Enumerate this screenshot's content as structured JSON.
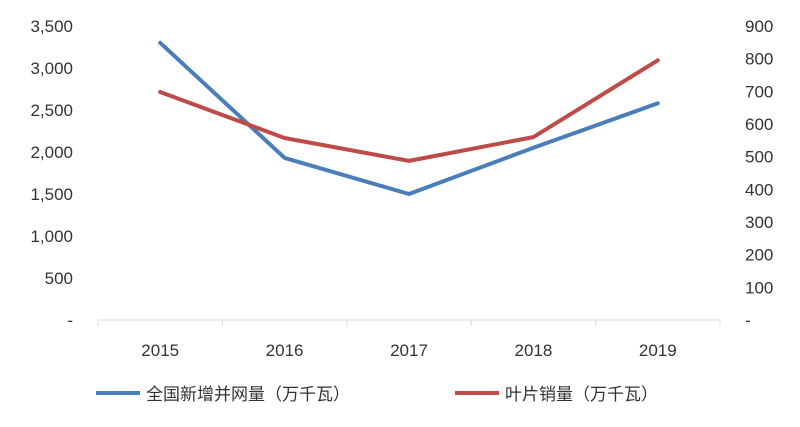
{
  "chart_data": {
    "type": "line",
    "title": "",
    "categories": [
      "2015",
      "2016",
      "2017",
      "2018",
      "2019"
    ],
    "y_left": {
      "ylim": [
        0,
        3500
      ],
      "ticks": [
        0,
        500,
        1000,
        1500,
        2000,
        2500,
        3000,
        3500
      ],
      "tick_labels": [
        "-",
        "500",
        "1,000",
        "1,500",
        "2,000",
        "2,500",
        "3,000",
        "3,500"
      ]
    },
    "y_right": {
      "ylim": [
        0,
        900
      ],
      "ticks": [
        0,
        100,
        200,
        300,
        400,
        500,
        600,
        700,
        800,
        900
      ],
      "tick_labels": [
        "-",
        "100",
        "200",
        "300",
        "400",
        "500",
        "600",
        "700",
        "800",
        "900"
      ]
    },
    "series": [
      {
        "name": "全国新增并网量（万千瓦）",
        "axis": "left",
        "color": "#4a7ebb",
        "values": [
          3300,
          1930,
          1500,
          2050,
          2580
        ]
      },
      {
        "name": "叶片销量（万千瓦）",
        "axis": "right",
        "color": "#be4b48",
        "values": [
          698,
          557,
          487,
          560,
          795
        ]
      }
    ],
    "grid": false,
    "legend": "bottom"
  }
}
